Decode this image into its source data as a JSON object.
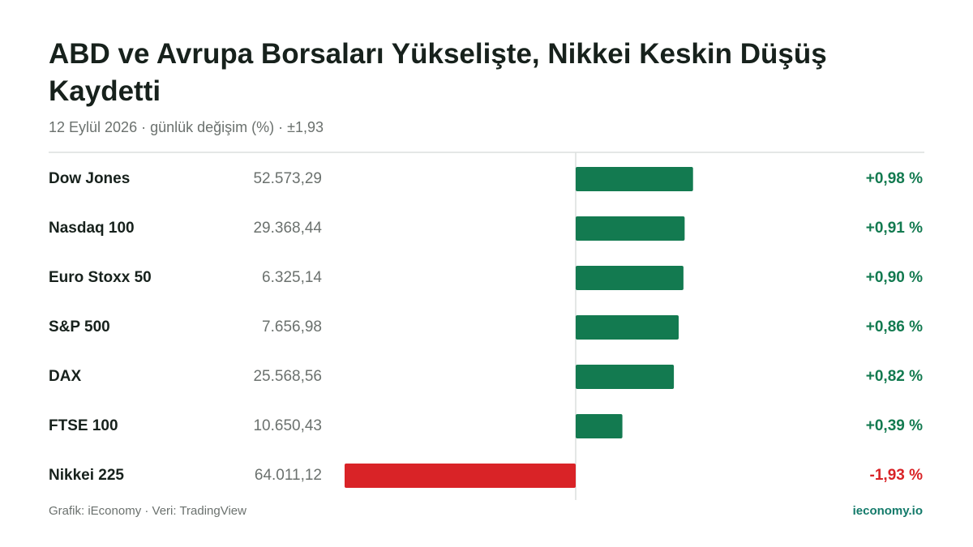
{
  "chart_data": {
    "type": "bar",
    "orientation": "horizontal",
    "title": "ABD ve Avrupa Borsaları Yükselişte, Nikkei Keskin Düşüş Kaydetti",
    "subtitle": "12 Eylül 2026 · günlük değişim (%) · ±1,93",
    "categories": [
      "Dow Jones",
      "Nasdaq 100",
      "Euro Stoxx 50",
      "S&P 500",
      "DAX",
      "FTSE 100",
      "Nikkei 225"
    ],
    "levels": [
      "52.573,29",
      "29.368,44",
      "6.325,14",
      "7.656,98",
      "25.568,56",
      "10.650,43",
      "64.011,12"
    ],
    "values": [
      0.98,
      0.91,
      0.9,
      0.86,
      0.82,
      0.39,
      -1.93
    ],
    "value_labels": [
      "+0,98 %",
      "+0,91 %",
      "+0,90 %",
      "+0,86 %",
      "+0,82 %",
      "+0,39 %",
      "-1,93 %"
    ],
    "positive_color": "#137a50",
    "negative_color": "#d92327",
    "xlim": [
      -1.93,
      1.93
    ]
  },
  "footer": {
    "source": "Grafik: iEconomy · Veri: TradingView",
    "brand": "ieconomy.io"
  }
}
